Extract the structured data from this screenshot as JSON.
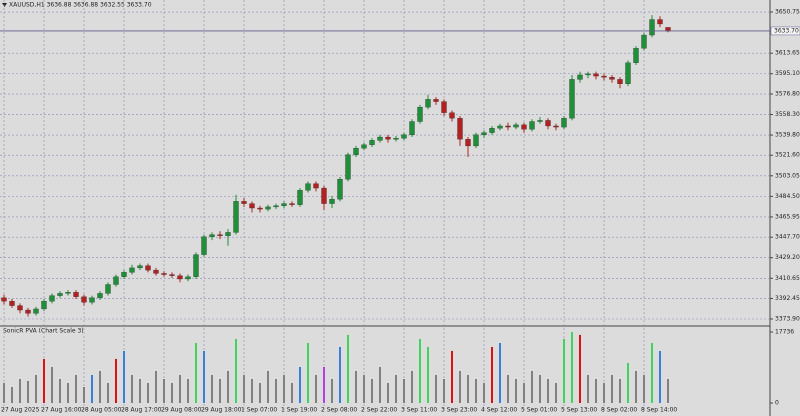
{
  "chart_data": [
    {
      "type": "candlestick",
      "title": "XAUUSD,H1  3636.88 3636.88 3632.55 3633.70",
      "up_color": "#1f8f3a",
      "down_color": "#b22222",
      "open": [
        3393,
        3390,
        3386,
        3382,
        3379,
        3383,
        3390,
        3395,
        3397,
        3398,
        3394,
        3389,
        3393,
        3397,
        3405,
        3412,
        3416,
        3420,
        3422,
        3418,
        3415,
        3414,
        3413,
        3410,
        3412,
        3432,
        3448,
        3450,
        3449,
        3452,
        3480,
        3478,
        3474,
        3473,
        3475,
        3476,
        3478,
        3477,
        3490,
        3496,
        3492,
        3478,
        3482,
        3500,
        3522,
        3528,
        3531,
        3535,
        3538,
        3536,
        3537,
        3540,
        3552,
        3565,
        3572,
        3570,
        3560,
        3555,
        3536,
        3530,
        3540,
        3542,
        3546,
        3548,
        3547,
        3549,
        3545,
        3552,
        3553,
        3548,
        3547,
        3555,
        3590,
        3594,
        3595,
        3593,
        3592,
        3590,
        3586,
        3605,
        3618,
        3630,
        3644,
        3636.88
      ],
      "high": [
        3396,
        3392,
        3388,
        3384,
        3385,
        3392,
        3397,
        3399,
        3400,
        3400,
        3396,
        3395,
        3399,
        3407,
        3414,
        3418,
        3423,
        3424,
        3424,
        3420,
        3417,
        3416,
        3415,
        3414,
        3434,
        3450,
        3452,
        3453,
        3455,
        3486,
        3483,
        3480,
        3476,
        3477,
        3478,
        3480,
        3480,
        3492,
        3498,
        3498,
        3494,
        3485,
        3502,
        3524,
        3530,
        3533,
        3537,
        3540,
        3540,
        3539,
        3542,
        3554,
        3567,
        3576,
        3574,
        3572,
        3562,
        3557,
        3538,
        3542,
        3544,
        3548,
        3550,
        3551,
        3551,
        3551,
        3554,
        3556,
        3555,
        3550,
        3557,
        3594,
        3597,
        3597,
        3597,
        3595,
        3594,
        3592,
        3607,
        3620,
        3632,
        3648,
        3647,
        3636.88
      ],
      "low": [
        3387,
        3384,
        3379,
        3376,
        3377,
        3381,
        3388,
        3393,
        3395,
        3392,
        3386,
        3387,
        3391,
        3395,
        3403,
        3410,
        3414,
        3418,
        3416,
        3413,
        3412,
        3411,
        3407,
        3408,
        3410,
        3430,
        3445,
        3446,
        3440,
        3450,
        3475,
        3470,
        3470,
        3471,
        3473,
        3474,
        3475,
        3475,
        3488,
        3489,
        3472,
        3474,
        3480,
        3498,
        3520,
        3526,
        3529,
        3533,
        3533,
        3534,
        3535,
        3538,
        3550,
        3563,
        3567,
        3557,
        3552,
        3530,
        3520,
        3528,
        3537,
        3540,
        3544,
        3544,
        3545,
        3542,
        3543,
        3550,
        3545,
        3544,
        3545,
        3553,
        3587,
        3591,
        3590,
        3589,
        3587,
        3582,
        3584,
        3603,
        3616,
        3628,
        3637,
        3632.55
      ],
      "close": [
        3390,
        3386,
        3382,
        3379,
        3383,
        3390,
        3395,
        3397,
        3398,
        3394,
        3389,
        3393,
        3397,
        3405,
        3412,
        3416,
        3420,
        3422,
        3418,
        3415,
        3414,
        3413,
        3410,
        3412,
        3432,
        3448,
        3450,
        3449,
        3452,
        3480,
        3478,
        3474,
        3473,
        3475,
        3476,
        3478,
        3477,
        3490,
        3496,
        3492,
        3478,
        3482,
        3500,
        3522,
        3528,
        3531,
        3535,
        3538,
        3536,
        3537,
        3540,
        3552,
        3565,
        3572,
        3570,
        3560,
        3555,
        3536,
        3530,
        3540,
        3542,
        3546,
        3548,
        3547,
        3549,
        3545,
        3552,
        3553,
        3548,
        3547,
        3555,
        3590,
        3594,
        3595,
        3593,
        3592,
        3590,
        3586,
        3605,
        3618,
        3630,
        3644,
        3640,
        3633.7
      ],
      "current_price": {
        "value": 3633.7,
        "label": "3633.70"
      },
      "ylim": [
        3368.5,
        3661.6
      ],
      "yticks": [
        {
          "value": 3373.9,
          "label": "3373.90"
        },
        3392.45,
        3410.65,
        {
          "value": 3429.2,
          "label": "3429.20"
        },
        {
          "value": 3447.7,
          "label": "3447.70"
        },
        3465.95,
        {
          "value": 3484.5,
          "label": "3484.50"
        },
        3503.05,
        {
          "value": 3521.6,
          "label": "3521.60"
        },
        {
          "value": 3539.8,
          "label": "3539.80"
        },
        {
          "value": 3558.3,
          "label": "3558.30"
        },
        {
          "value": 3576.8,
          "label": "3576.80"
        },
        {
          "value": 3595.1,
          "label": "3595.10"
        },
        3613.65,
        3650.75
      ],
      "grid": true
    },
    {
      "type": "bar",
      "title": "SonicR PVA (Chart Scale 3)",
      "x": [
        "27 Aug 2025",
        null,
        null,
        null,
        null,
        "27 Aug 16:00",
        null,
        null,
        null,
        null,
        "28 Aug 05:00",
        null,
        null,
        null,
        null,
        "28 Aug 17:00",
        null,
        null,
        null,
        null,
        "29 Aug 08:00",
        null,
        null,
        null,
        null,
        "29 Aug 18:00",
        null,
        null,
        null,
        null,
        "1 Sep 07:00",
        null,
        null,
        null,
        null,
        "1 Sep 19:00",
        null,
        null,
        null,
        null,
        "2 Sep 08:00",
        null,
        null,
        null,
        null,
        "2 Sep 22:00",
        null,
        null,
        null,
        null,
        "3 Sep 11:00",
        null,
        null,
        null,
        null,
        "3 Sep 23:00",
        null,
        null,
        null,
        null,
        "4 Sep 12:00",
        null,
        null,
        null,
        null,
        "5 Sep 01:00",
        null,
        null,
        null,
        null,
        "5 Sep 13:00",
        null,
        null,
        null,
        null,
        "8 Sep 02:00",
        null,
        null,
        null,
        null,
        "8 Sep 14:00",
        null,
        null,
        null
      ],
      "values": [
        5000,
        4000,
        6000,
        5500,
        7000,
        11000,
        9000,
        6000,
        5000,
        7000,
        4000,
        7000,
        8000,
        5000,
        11000,
        13000,
        7000,
        6000,
        5000,
        8000,
        6000,
        5000,
        7000,
        6000,
        15000,
        13000,
        7000,
        6000,
        8000,
        16000,
        7000,
        6000,
        5000,
        8000,
        6000,
        7000,
        5000,
        9000,
        15000,
        7000,
        9000,
        6000,
        14000,
        17000,
        8000,
        7000,
        6000,
        9000,
        5000,
        7000,
        6000,
        8000,
        16000,
        14000,
        7000,
        6000,
        13000,
        8000,
        7000,
        6000,
        5000,
        14000,
        15000,
        7000,
        6000,
        5000,
        8000,
        7000,
        6000,
        5000,
        16000,
        17736,
        17000,
        7000,
        6000,
        5000,
        7000,
        6000,
        10000,
        8000,
        7000,
        15000,
        13000,
        6000
      ],
      "colors": [
        "#808080",
        "#808080",
        "#808080",
        "#808080",
        "#808080",
        "#dd1111",
        "#808080",
        "#808080",
        "#808080",
        "#808080",
        "#808080",
        "#3b7fdd",
        "#808080",
        "#808080",
        "#dd1111",
        "#3b7fdd",
        "#808080",
        "#808080",
        "#808080",
        "#808080",
        "#808080",
        "#808080",
        "#808080",
        "#808080",
        "#3fd45b",
        "#3b7fdd",
        "#808080",
        "#808080",
        "#808080",
        "#3fd45b",
        "#808080",
        "#808080",
        "#808080",
        "#808080",
        "#808080",
        "#808080",
        "#808080",
        "#3b7fdd",
        "#3fd45b",
        "#808080",
        "#b040e0",
        "#808080",
        "#3b7fdd",
        "#3fd45b",
        "#808080",
        "#808080",
        "#808080",
        "#808080",
        "#808080",
        "#808080",
        "#808080",
        "#808080",
        "#3fd45b",
        "#3fd45b",
        "#808080",
        "#808080",
        "#dd1111",
        "#808080",
        "#808080",
        "#808080",
        "#808080",
        "#dd1111",
        "#3b7fdd",
        "#808080",
        "#808080",
        "#808080",
        "#808080",
        "#808080",
        "#808080",
        "#808080",
        "#3fd45b",
        "#3fd45b",
        "#dd1111",
        "#808080",
        "#808080",
        "#808080",
        "#808080",
        "#808080",
        "#3fd45b",
        "#808080",
        "#808080",
        "#3fd45b",
        "#3b7fdd",
        "#808080"
      ],
      "ylim": [
        0,
        17736
      ],
      "yticks": [
        0,
        17736
      ]
    }
  ]
}
